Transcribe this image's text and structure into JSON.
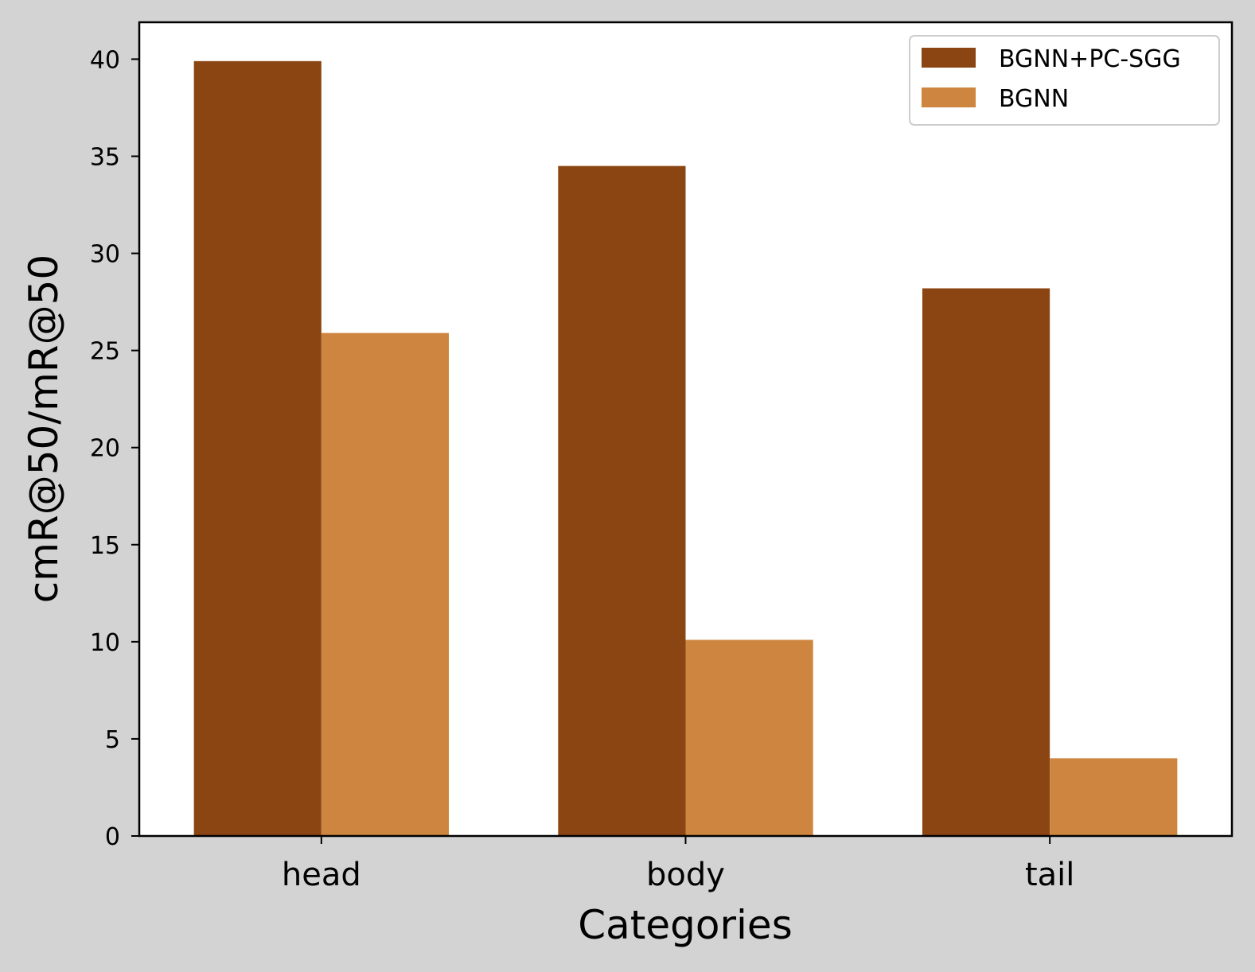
{
  "chart_data": {
    "type": "bar",
    "title": "",
    "xlabel": "Categories",
    "ylabel": "cmR@50/mR@50",
    "categories": [
      "head",
      "body",
      "tail"
    ],
    "series": [
      {
        "name": "BGNN+PC-SGG",
        "values": [
          39.9,
          34.5,
          28.2
        ],
        "color": "#8b4513"
      },
      {
        "name": "BGNN",
        "values": [
          25.9,
          10.1,
          4.0
        ],
        "color": "#cd853f"
      }
    ],
    "ylim": [
      0,
      41.9
    ],
    "yticks": [
      0,
      5,
      10,
      15,
      20,
      25,
      30,
      35,
      40
    ],
    "grid": false,
    "legend_position": "top-right"
  }
}
